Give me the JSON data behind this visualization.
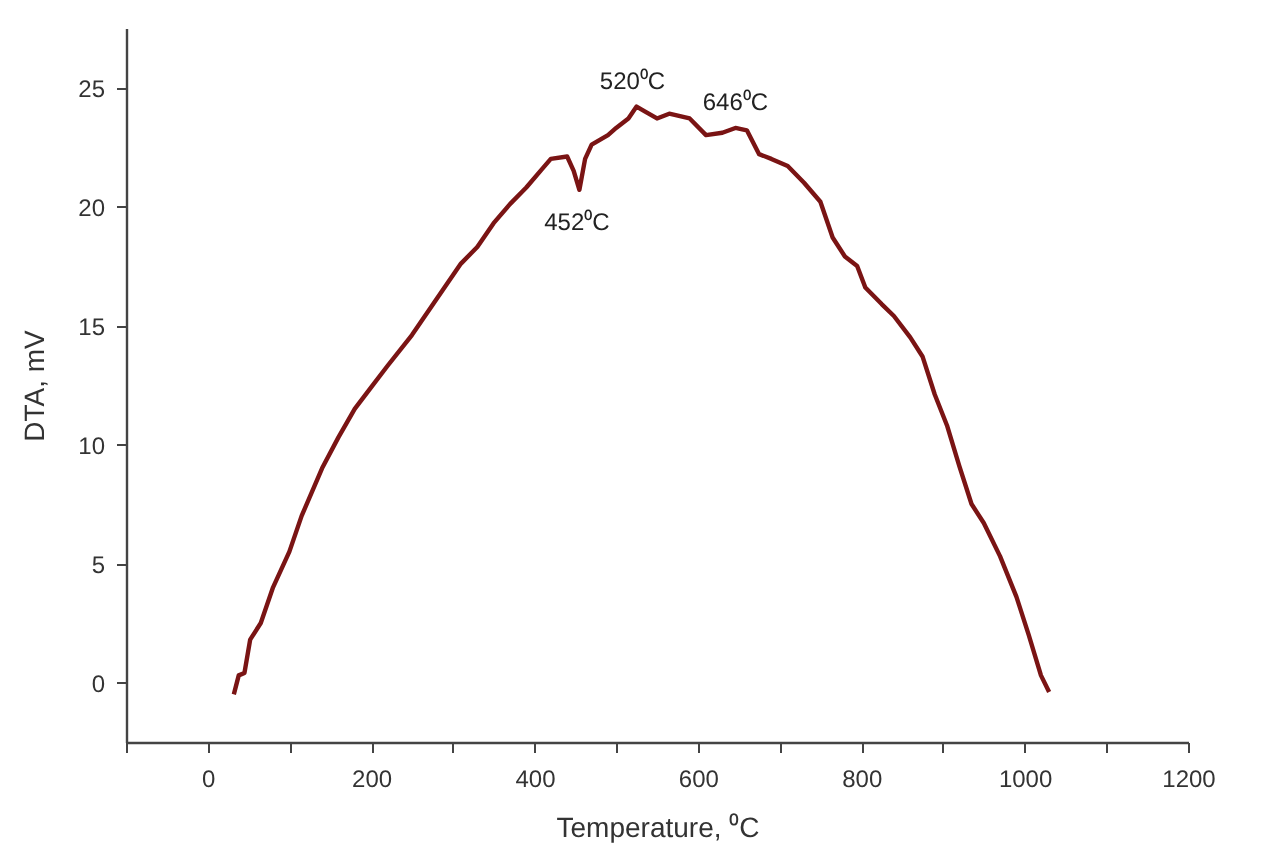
{
  "chart_data": {
    "type": "line",
    "xlabel": "Temperature, ⁰C",
    "ylabel": "DTA, mV",
    "xlim": [
      -100,
      1200
    ],
    "ylim": [
      -2.5,
      27.5
    ],
    "xticks": [
      {
        "value": -100,
        "label": null
      },
      0,
      {
        "value": 100,
        "label": null
      },
      200,
      {
        "value": 300,
        "label": null
      },
      400,
      {
        "value": 500,
        "label": null
      },
      600,
      {
        "value": 700,
        "label": null
      },
      800,
      {
        "value": 900,
        "label": null
      },
      1000,
      {
        "value": 1100,
        "label": null
      },
      1200
    ],
    "yticks": [
      0,
      5,
      10,
      15,
      20,
      25
    ],
    "grid": false,
    "marker": "none",
    "line_style": "solid",
    "x": [
      32,
      38,
      45,
      52,
      65,
      80,
      100,
      115,
      140,
      160,
      180,
      200,
      220,
      250,
      280,
      310,
      330,
      350,
      370,
      390,
      410,
      420,
      440,
      448,
      455,
      462,
      470,
      490,
      500,
      515,
      525,
      535,
      550,
      565,
      590,
      610,
      630,
      646,
      660,
      675,
      690,
      710,
      730,
      750,
      765,
      780,
      795,
      805,
      825,
      840,
      860,
      875,
      890,
      905,
      920,
      935,
      950,
      970,
      990,
      1005,
      1020,
      1030
    ],
    "series": [
      {
        "color": "#7a1414",
        "values": [
          -0.5,
          0.3,
          0.4,
          1.8,
          2.5,
          4,
          5.5,
          7,
          9,
          10.3,
          11.5,
          12.4,
          13.3,
          14.6,
          16.1,
          17.6,
          18.3,
          19.3,
          20.1,
          20.8,
          21.6,
          22,
          22.1,
          21.5,
          20.7,
          22,
          22.6,
          23,
          23.3,
          23.7,
          24.2,
          24,
          23.7,
          23.9,
          23.7,
          23,
          23.1,
          23.3,
          23.2,
          22.2,
          22,
          21.7,
          21,
          20.2,
          18.7,
          17.9,
          17.5,
          16.6,
          15.9,
          15.4,
          14.5,
          13.7,
          12.1,
          10.8,
          9.1,
          7.5,
          6.7,
          5.3,
          3.6,
          2,
          0.3,
          -0.4
        ]
      }
    ],
    "annotations": [
      {
        "text": "452⁰C",
        "x": 452,
        "y": 20.7
      },
      {
        "text": "520⁰C",
        "x": 520,
        "y": 24.2
      },
      {
        "text": "646⁰C",
        "x": 646,
        "y": 23.3
      }
    ]
  }
}
